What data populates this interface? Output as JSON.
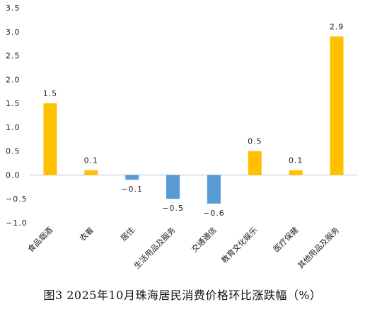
{
  "chart_data": {
    "type": "bar",
    "title": "图3 2025年10月珠海居民消费价格环比涨跌幅（%）",
    "categories": [
      "食品烟酒",
      "衣着",
      "居住",
      "生活用品及服务",
      "交通通信",
      "教育文化娱乐",
      "医疗保健",
      "其他用品及服务"
    ],
    "values": [
      1.5,
      0.1,
      -0.1,
      -0.5,
      -0.6,
      0.5,
      0.1,
      2.9
    ],
    "data_labels": [
      "1.5",
      "0.1",
      "−0.1",
      "−0.5",
      "−0.6",
      "0.5",
      "0.1",
      "2.9"
    ],
    "ylim": [
      -1.0,
      3.5
    ],
    "yticks": [
      "−1.0",
      "−0.5",
      "0.0",
      "0.5",
      "1.0",
      "1.5",
      "2.0",
      "2.5",
      "3.0",
      "3.5"
    ],
    "ytick_values": [
      -1.0,
      -0.5,
      0.0,
      0.5,
      1.0,
      1.5,
      2.0,
      2.5,
      3.0,
      3.5
    ],
    "colors": {
      "positive": "#FFC000",
      "negative": "#5B9BD5",
      "axis": "#BFBFBF"
    },
    "grid": false,
    "legend": "none"
  }
}
